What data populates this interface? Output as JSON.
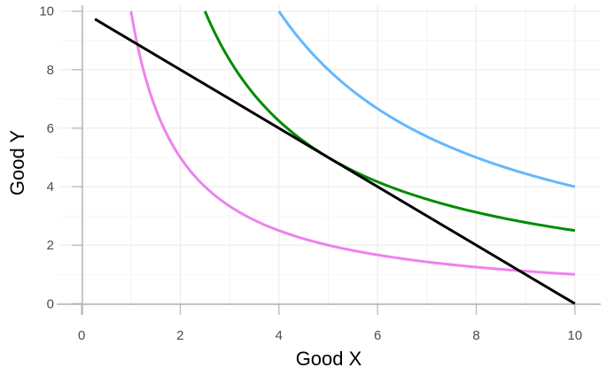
{
  "chart_data": {
    "type": "line",
    "xlabel": "Good X",
    "ylabel": "Good Y",
    "xlim": [
      -0.2,
      10.2
    ],
    "ylim": [
      -0.05,
      10.05
    ],
    "xticks": [
      0,
      2,
      4,
      6,
      8,
      10
    ],
    "yticks": [
      0,
      2,
      4,
      6,
      8,
      10
    ],
    "x_tick_labels": [
      "0",
      "2",
      "4",
      "6",
      "8",
      "10"
    ],
    "y_tick_labels": [
      "0",
      "2",
      "4",
      "6",
      "8",
      "10"
    ],
    "grid": true,
    "legend": "none",
    "series": [
      {
        "kind": "indifference",
        "k": 10,
        "x_from": 1,
        "x_to": 10,
        "color": "#ee82ee"
      },
      {
        "kind": "indifference",
        "k": 25,
        "x_from": 2.5,
        "x_to": 10,
        "color": "#008b00"
      },
      {
        "kind": "indifference",
        "k": 40,
        "x_from": 4,
        "x_to": 10,
        "color": "#63b8ff"
      },
      {
        "kind": "budget_line",
        "x": [
          0.27,
          10
        ],
        "y": [
          9.73,
          0
        ],
        "color": "#000000"
      }
    ]
  }
}
